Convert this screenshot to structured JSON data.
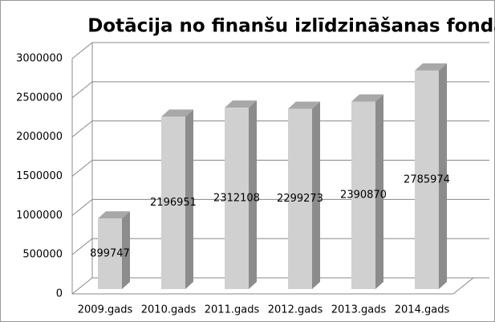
{
  "chart_data": {
    "type": "bar3d",
    "title": "Dotācija no finanšu izlīdzināšanas fonda",
    "categories": [
      "2009.gads",
      "2010.gads",
      "2011.gads",
      "2012.gads",
      "2013.gads",
      "2014.gads"
    ],
    "values": [
      899747,
      2196951,
      2312108,
      2299273,
      2390870,
      2785974
    ],
    "color": "#d0d0d0",
    "ylim": [
      0,
      3000000
    ],
    "yticks": [
      0,
      500000,
      1000000,
      1500000,
      2000000,
      2500000,
      3000000
    ],
    "grid": true
  }
}
